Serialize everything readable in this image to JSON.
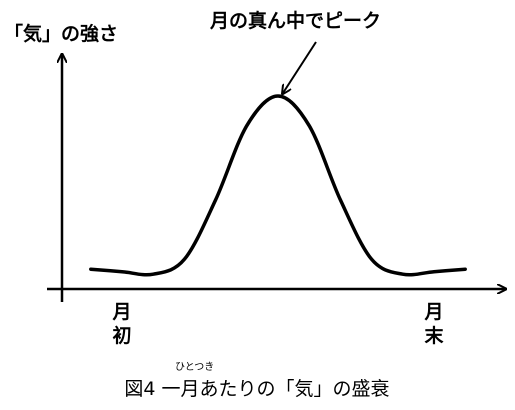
{
  "chart_data": {
    "type": "line",
    "title": "図4 一月あたりの「気」の盛衰",
    "title_ruby": "ひとつき",
    "ylabel": "「気」の強さ",
    "xlabel": "",
    "x_tick_labels": [
      "月\n初",
      "月\n末"
    ],
    "annotation": "月の真ん中でピーク",
    "grid": false,
    "x": [
      0,
      0.1,
      0.2,
      0.3,
      0.4,
      0.5,
      0.6,
      0.7,
      0.8,
      0.9,
      1
    ],
    "series": [
      {
        "values": [
          0.35,
          0.3,
          0.6,
          1.8,
          3.3,
          3.9,
          3.3,
          1.8,
          0.6,
          0.3,
          0.35
        ]
      }
    ],
    "xlim": [
      -0.15,
      1.15
    ],
    "ylim": [
      0,
      5
    ],
    "colors": {
      "line": "#000000",
      "axis": "#000000",
      "background": "#ffffff"
    }
  }
}
